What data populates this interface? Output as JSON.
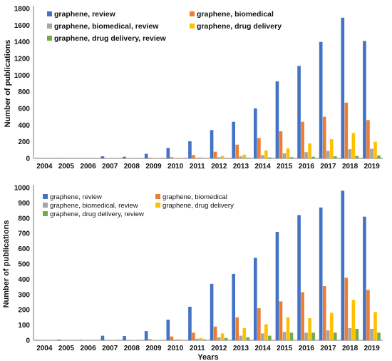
{
  "chart_data": [
    {
      "type": "bar",
      "title": "",
      "xlabel": "",
      "ylabel": "Number of publications",
      "ylim": [
        0,
        1800
      ],
      "yticks": [
        0,
        200,
        400,
        600,
        800,
        1000,
        1200,
        1400,
        1600,
        1800
      ],
      "grid": false,
      "legend_position": "top",
      "categories": [
        "2004",
        "2005",
        "2006",
        "2007",
        "2008",
        "2009",
        "2010",
        "2011",
        "2012",
        "2013",
        "2014",
        "2015",
        "2016",
        "2017",
        "2018",
        "2019"
      ],
      "series": [
        {
          "name": "graphene, review",
          "color": "#4472C4",
          "values": [
            2,
            5,
            3,
            25,
            20,
            55,
            125,
            205,
            340,
            440,
            600,
            925,
            1110,
            1400,
            1690,
            1410
          ]
        },
        {
          "name": "graphene, biomedical",
          "color": "#ED7D31",
          "values": [
            0,
            1,
            1,
            3,
            4,
            8,
            15,
            40,
            80,
            165,
            245,
            325,
            440,
            500,
            670,
            460
          ]
        },
        {
          "name": "graphene, biomedical, review",
          "color": "#A5A5A5",
          "values": [
            0,
            0,
            0,
            1,
            1,
            2,
            4,
            8,
            15,
            25,
            40,
            60,
            75,
            90,
            110,
            115
          ]
        },
        {
          "name": "graphene,  drug delivery",
          "color": "#FFC000",
          "values": [
            0,
            0,
            0,
            1,
            2,
            3,
            6,
            12,
            30,
            45,
            95,
            120,
            180,
            230,
            305,
            200
          ]
        },
        {
          "name": "graphene,  drug delivery, review",
          "color": "#70AD47",
          "values": [
            0,
            0,
            0,
            0,
            0,
            1,
            2,
            3,
            5,
            8,
            12,
            15,
            20,
            25,
            30,
            35
          ]
        }
      ]
    },
    {
      "type": "bar",
      "title": "",
      "xlabel": "Years",
      "ylabel": "Number of publications",
      "ylim": [
        0,
        1000
      ],
      "yticks": [
        0,
        100,
        200,
        300,
        400,
        500,
        600,
        700,
        800,
        900,
        1000
      ],
      "grid": false,
      "legend_position": "top",
      "categories": [
        "2004",
        "2005",
        "2006",
        "2007",
        "2008",
        "2009",
        "2010",
        "2011",
        "2012",
        "2013",
        "2014",
        "2015",
        "2016",
        "2017",
        "2018",
        "2019"
      ],
      "series": [
        {
          "name": "graphene, review",
          "color": "#4472C4",
          "values": [
            3,
            5,
            3,
            30,
            28,
            60,
            135,
            220,
            370,
            435,
            540,
            710,
            820,
            870,
            980,
            810
          ]
        },
        {
          "name": "graphene, biomedical",
          "color": "#ED7D31",
          "values": [
            0,
            1,
            1,
            3,
            3,
            7,
            25,
            50,
            90,
            150,
            210,
            255,
            315,
            355,
            410,
            330
          ]
        },
        {
          "name": "graphene, biomedical, review",
          "color": "#A5A5A5",
          "values": [
            0,
            0,
            0,
            1,
            1,
            2,
            5,
            10,
            20,
            30,
            45,
            55,
            50,
            65,
            80,
            75
          ]
        },
        {
          "name": "graphene, drug delivery",
          "color": "#FFC000",
          "values": [
            0,
            0,
            0,
            1,
            2,
            3,
            8,
            15,
            45,
            80,
            105,
            150,
            145,
            180,
            265,
            185
          ]
        },
        {
          "name": "graphene, drug delivery, review",
          "color": "#70AD47",
          "values": [
            0,
            0,
            0,
            0,
            0,
            1,
            3,
            6,
            15,
            20,
            30,
            50,
            50,
            50,
            75,
            50
          ]
        }
      ]
    }
  ]
}
